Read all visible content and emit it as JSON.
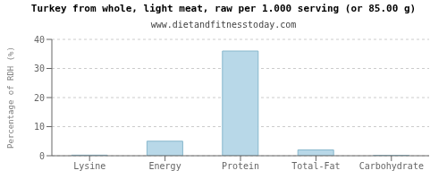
{
  "chart_data": {
    "type": "bar",
    "title": "Turkey from whole, light meat, raw per 1.000 serving (or 85.00 g)",
    "subtitle": "www.dietandfitnesstoday.com",
    "categories": [
      "Lysine",
      "Energy",
      "Protein",
      "Total-Fat",
      "Carbohydrate"
    ],
    "values": [
      0.2,
      5.0,
      36.0,
      2.0,
      0.1
    ],
    "color": "#b8d8e8",
    "ylabel": "Percentage of RDH (%)",
    "ylim": [
      0,
      40
    ],
    "yticks": [
      0,
      10,
      20,
      30,
      40
    ],
    "grid": true
  }
}
